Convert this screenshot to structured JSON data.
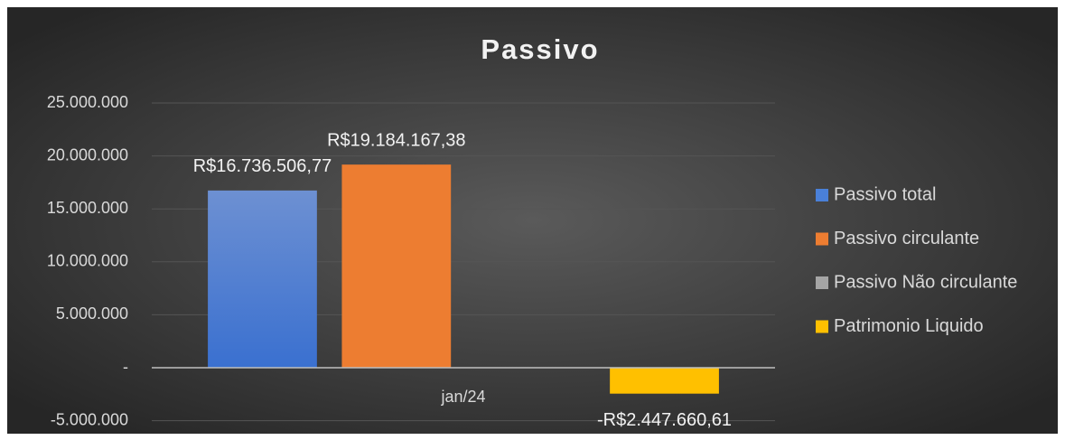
{
  "chart_data": {
    "type": "bar",
    "title": "Passivo",
    "categories": [
      "jan/24"
    ],
    "series": [
      {
        "name": "Passivo total",
        "color": "#4a80d8",
        "values": [
          16736506.77
        ],
        "value_labels": [
          "R$16.736.506,77"
        ]
      },
      {
        "name": "Passivo circulante",
        "color": "#ed7d31",
        "values": [
          19184167.38
        ],
        "value_labels": [
          "R$19.184.167,38"
        ]
      },
      {
        "name": "Passivo Não circulante",
        "color": "#a5a5a5",
        "values": [
          null
        ],
        "value_labels": [
          null
        ]
      },
      {
        "name": "Patrimonio Liquido",
        "color": "#ffc000",
        "values": [
          -2447660.61
        ],
        "value_labels": [
          "-R$2.447.660,61"
        ]
      }
    ],
    "ylim": [
      -5000000,
      25000000
    ],
    "yticks": [
      {
        "value": -5000000,
        "label": "-5.000.000"
      },
      {
        "value": 0,
        "label": "-"
      },
      {
        "value": 5000000,
        "label": "5.000.000"
      },
      {
        "value": 10000000,
        "label": "10.000.000"
      },
      {
        "value": 15000000,
        "label": "15.000.000"
      },
      {
        "value": 20000000,
        "label": "20.000.000"
      },
      {
        "value": 25000000,
        "label": "25.000.000"
      }
    ],
    "grid": true,
    "legend": "right"
  }
}
